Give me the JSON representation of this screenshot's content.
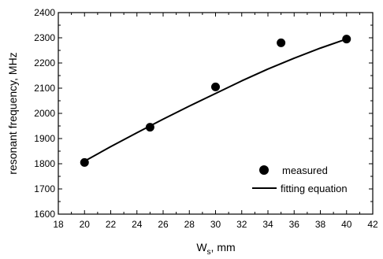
{
  "chart_data": {
    "type": "scatter",
    "title": "",
    "xlabel_main": "W",
    "xlabel_sub": "s",
    "xlabel_rest": ", mm",
    "ylabel": "resonant frequency, MHz",
    "xlim": [
      18,
      42
    ],
    "ylim": [
      1600,
      2400
    ],
    "xticks": [
      18,
      20,
      22,
      24,
      26,
      28,
      30,
      32,
      34,
      36,
      38,
      40,
      42
    ],
    "yticks": [
      1600,
      1700,
      1800,
      1900,
      2000,
      2100,
      2200,
      2300,
      2400
    ],
    "grid": false,
    "legend_position": "bottom-right",
    "series": [
      {
        "name": "measured",
        "kind": "markers",
        "color": "#000000",
        "x": [
          20,
          25,
          30,
          35,
          40
        ],
        "y": [
          1805,
          1945,
          2105,
          2280,
          2295
        ]
      },
      {
        "name": "fitting equation",
        "kind": "line",
        "color": "#000000",
        "x": [
          20,
          22,
          24,
          26,
          28,
          30,
          32,
          34,
          36,
          38,
          40
        ],
        "y": [
          1810,
          1868,
          1923,
          1977,
          2029,
          2079,
          2129,
          2176,
          2219,
          2259,
          2295
        ]
      }
    ]
  }
}
